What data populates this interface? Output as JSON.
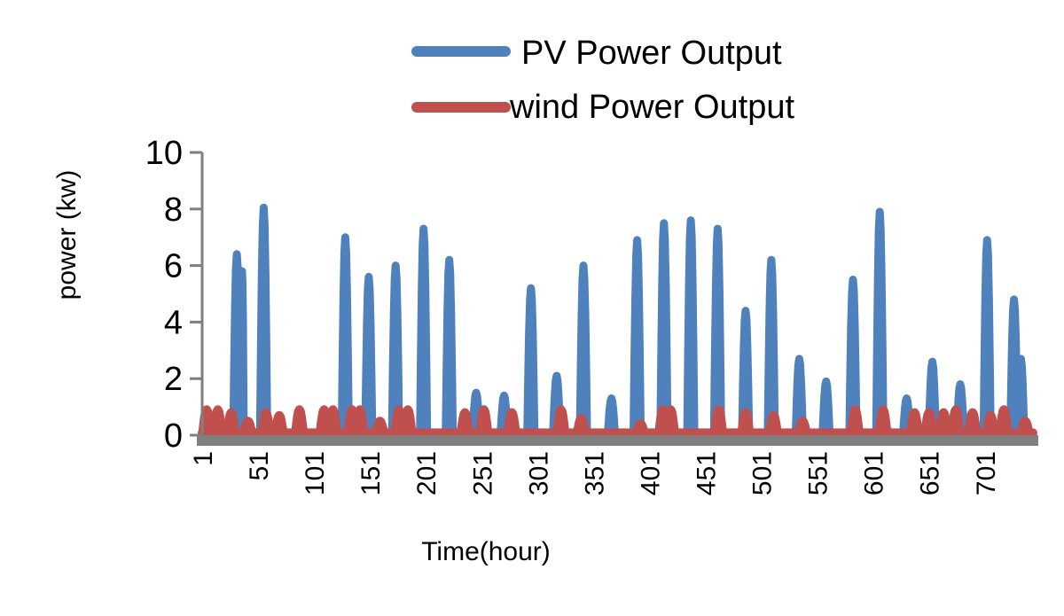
{
  "chart_data": {
    "type": "line",
    "xlabel": "Time(hour)",
    "ylabel": "power (kw)",
    "xlim": [
      1,
      744
    ],
    "ylim": [
      0,
      10
    ],
    "y_ticks": [
      "0",
      "2",
      "4",
      "6",
      "8",
      "10"
    ],
    "x_ticks": [
      "1",
      "51",
      "101",
      "151",
      "201",
      "251",
      "301",
      "351",
      "401",
      "451",
      "501",
      "551",
      "601",
      "651",
      "701"
    ],
    "legend_position": "top-right",
    "grid": false,
    "series": [
      {
        "name": "PV Power Output",
        "color": "#4f81bd",
        "peaks": [
          {
            "x": 32,
            "y": 6.4
          },
          {
            "x": 35,
            "y": 5.8
          },
          {
            "x": 56,
            "y": 8.05
          },
          {
            "x": 129,
            "y": 7.0
          },
          {
            "x": 150,
            "y": 5.6
          },
          {
            "x": 174,
            "y": 6.0
          },
          {
            "x": 199,
            "y": 7.3
          },
          {
            "x": 222,
            "y": 6.2
          },
          {
            "x": 246,
            "y": 1.5
          },
          {
            "x": 271,
            "y": 1.4
          },
          {
            "x": 295,
            "y": 5.2
          },
          {
            "x": 318,
            "y": 2.1
          },
          {
            "x": 342,
            "y": 6.0
          },
          {
            "x": 367,
            "y": 1.3
          },
          {
            "x": 390,
            "y": 6.9
          },
          {
            "x": 414,
            "y": 7.5
          },
          {
            "x": 438,
            "y": 7.6
          },
          {
            "x": 462,
            "y": 7.3
          },
          {
            "x": 487,
            "y": 4.4
          },
          {
            "x": 510,
            "y": 6.2
          },
          {
            "x": 535,
            "y": 2.7
          },
          {
            "x": 559,
            "y": 1.9
          },
          {
            "x": 583,
            "y": 5.5
          },
          {
            "x": 607,
            "y": 7.9
          },
          {
            "x": 631,
            "y": 1.3
          },
          {
            "x": 654,
            "y": 2.6
          },
          {
            "x": 679,
            "y": 1.8
          },
          {
            "x": 703,
            "y": 6.9
          },
          {
            "x": 727,
            "y": 4.8
          },
          {
            "x": 733,
            "y": 2.7
          }
        ]
      },
      {
        "name": "wind Power Output",
        "color": "#c0504d",
        "peaks": [
          {
            "x": 5,
            "y": 0.9
          },
          {
            "x": 15,
            "y": 0.9
          },
          {
            "x": 27,
            "y": 0.8
          },
          {
            "x": 42,
            "y": 0.5
          },
          {
            "x": 58,
            "y": 0.8
          },
          {
            "x": 70,
            "y": 0.7
          },
          {
            "x": 88,
            "y": 0.9
          },
          {
            "x": 110,
            "y": 0.9
          },
          {
            "x": 118,
            "y": 0.9
          },
          {
            "x": 135,
            "y": 0.9
          },
          {
            "x": 142,
            "y": 0.9
          },
          {
            "x": 160,
            "y": 0.5
          },
          {
            "x": 177,
            "y": 0.9
          },
          {
            "x": 185,
            "y": 0.9
          },
          {
            "x": 236,
            "y": 0.8
          },
          {
            "x": 253,
            "y": 0.9
          },
          {
            "x": 278,
            "y": 0.8
          },
          {
            "x": 322,
            "y": 0.9
          },
          {
            "x": 340,
            "y": 0.6
          },
          {
            "x": 393,
            "y": 0.4
          },
          {
            "x": 413,
            "y": 0.9
          },
          {
            "x": 420,
            "y": 0.9
          },
          {
            "x": 463,
            "y": 0.9
          },
          {
            "x": 487,
            "y": 0.8
          },
          {
            "x": 512,
            "y": 0.7
          },
          {
            "x": 538,
            "y": 0.5
          },
          {
            "x": 585,
            "y": 0.9
          },
          {
            "x": 610,
            "y": 0.9
          },
          {
            "x": 638,
            "y": 0.8
          },
          {
            "x": 651,
            "y": 0.8
          },
          {
            "x": 664,
            "y": 0.8
          },
          {
            "x": 675,
            "y": 0.9
          },
          {
            "x": 690,
            "y": 0.8
          },
          {
            "x": 706,
            "y": 0.7
          },
          {
            "x": 718,
            "y": 0.9
          },
          {
            "x": 737,
            "y": 0.5
          }
        ]
      }
    ]
  }
}
